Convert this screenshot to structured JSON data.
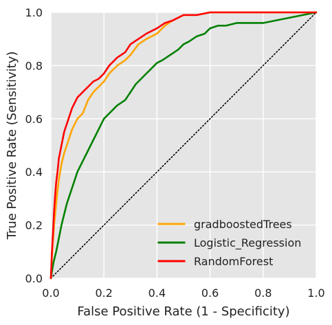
{
  "chart_data": {
    "type": "line",
    "title": "",
    "xlabel": "False Positive Rate (1 - Specificity)",
    "ylabel": "True Positive Rate (Sensitivity)",
    "xlim": [
      0.0,
      1.0
    ],
    "ylim": [
      0.0,
      1.0
    ],
    "grid": true,
    "legend_position": "lower-right",
    "background_color": "#e5e5e5",
    "x_ticks": [
      0.0,
      0.2,
      0.4,
      0.6,
      0.8,
      1.0
    ],
    "y_ticks": [
      0.0,
      0.2,
      0.4,
      0.6,
      0.8,
      1.0
    ],
    "x_tick_labels": [
      "0.0",
      "0.2",
      "0.4",
      "0.6",
      "0.8",
      "1.0"
    ],
    "y_tick_labels": [
      "0.0",
      "0.2",
      "0.4",
      "0.6",
      "0.8",
      "1.0"
    ],
    "series": [
      {
        "name": "gradboostedTrees",
        "color": "#ffa500",
        "x": [
          0.0,
          0.002,
          0.004,
          0.008,
          0.012,
          0.018,
          0.024,
          0.03,
          0.04,
          0.05,
          0.06,
          0.07,
          0.08,
          0.09,
          0.1,
          0.12,
          0.14,
          0.16,
          0.18,
          0.2,
          0.22,
          0.25,
          0.28,
          0.3,
          0.33,
          0.36,
          0.4,
          0.43,
          0.46,
          0.5,
          0.55,
          0.6,
          0.65,
          0.7,
          0.8,
          0.9,
          1.0
        ],
        "y": [
          0.0,
          0.04,
          0.08,
          0.14,
          0.2,
          0.26,
          0.32,
          0.37,
          0.43,
          0.47,
          0.5,
          0.53,
          0.56,
          0.58,
          0.6,
          0.62,
          0.67,
          0.7,
          0.72,
          0.74,
          0.77,
          0.8,
          0.82,
          0.84,
          0.88,
          0.9,
          0.92,
          0.95,
          0.97,
          0.99,
          0.99,
          1.0,
          1.0,
          1.0,
          1.0,
          1.0,
          1.0
        ]
      },
      {
        "name": "Logistic_Regression",
        "color": "#008000",
        "x": [
          0.0,
          0.005,
          0.01,
          0.02,
          0.03,
          0.04,
          0.05,
          0.06,
          0.07,
          0.08,
          0.1,
          0.12,
          0.14,
          0.16,
          0.18,
          0.2,
          0.22,
          0.25,
          0.28,
          0.3,
          0.32,
          0.35,
          0.38,
          0.4,
          0.42,
          0.45,
          0.48,
          0.5,
          0.52,
          0.55,
          0.58,
          0.6,
          0.63,
          0.66,
          0.7,
          0.75,
          0.8,
          0.85,
          0.9,
          0.95,
          1.0
        ],
        "y": [
          0.0,
          0.03,
          0.06,
          0.1,
          0.15,
          0.2,
          0.24,
          0.28,
          0.31,
          0.34,
          0.4,
          0.44,
          0.48,
          0.52,
          0.56,
          0.6,
          0.62,
          0.65,
          0.67,
          0.7,
          0.73,
          0.76,
          0.79,
          0.81,
          0.82,
          0.84,
          0.86,
          0.88,
          0.89,
          0.91,
          0.92,
          0.94,
          0.95,
          0.95,
          0.96,
          0.96,
          0.96,
          0.97,
          0.98,
          0.99,
          1.0
        ]
      },
      {
        "name": "RandomForest",
        "color": "#ff0000",
        "x": [
          0.0,
          0.002,
          0.004,
          0.008,
          0.012,
          0.016,
          0.02,
          0.025,
          0.03,
          0.04,
          0.05,
          0.06,
          0.07,
          0.08,
          0.09,
          0.1,
          0.12,
          0.14,
          0.16,
          0.18,
          0.2,
          0.22,
          0.25,
          0.28,
          0.3,
          0.33,
          0.36,
          0.4,
          0.43,
          0.46,
          0.5,
          0.55,
          0.6,
          0.7,
          0.8,
          0.9,
          1.0
        ],
        "y": [
          0.0,
          0.05,
          0.1,
          0.17,
          0.25,
          0.31,
          0.36,
          0.4,
          0.45,
          0.5,
          0.55,
          0.58,
          0.61,
          0.64,
          0.66,
          0.68,
          0.7,
          0.72,
          0.74,
          0.75,
          0.77,
          0.8,
          0.83,
          0.85,
          0.88,
          0.9,
          0.92,
          0.94,
          0.96,
          0.97,
          0.99,
          0.99,
          1.0,
          1.0,
          1.0,
          1.0,
          1.0
        ]
      }
    ],
    "reference_line": {
      "name": "chance",
      "color": "#000000",
      "style": "dotted",
      "x": [
        0.0,
        1.0
      ],
      "y": [
        0.0,
        1.0
      ]
    }
  }
}
